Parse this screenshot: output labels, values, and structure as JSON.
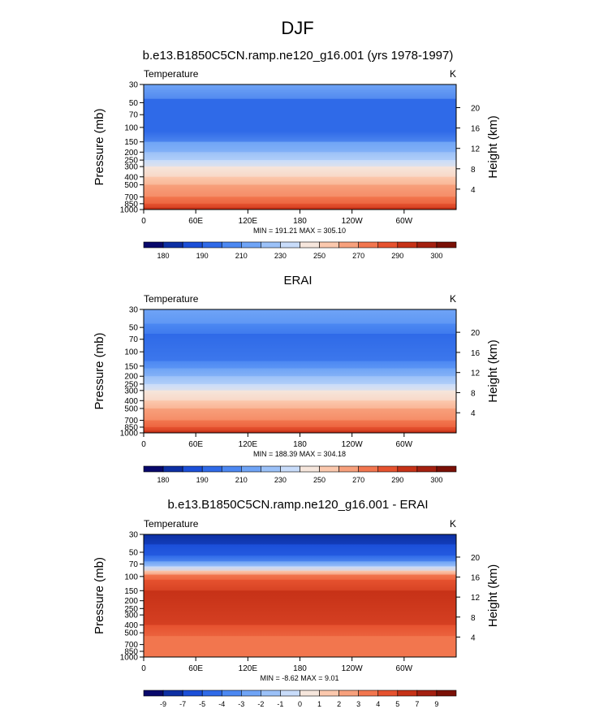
{
  "title": "DJF",
  "chart_data": [
    {
      "type": "heatmap",
      "title": "b.e13.B1850C5CN.ramp.ne120_g16.001 (yrs 1978-1997)",
      "left_string": "Temperature",
      "right_string": "K",
      "ylabel": "Pressure (mb)",
      "ylabel_right": "Height (km)",
      "x_ticks": [
        "0",
        "60E",
        "120E",
        "180",
        "120W",
        "60W"
      ],
      "y_ticks": [
        "30",
        "50",
        "70",
        "100",
        "150",
        "200",
        "250",
        "300",
        "400",
        "500",
        "700",
        "850",
        "1000"
      ],
      "height_ticks": [
        "20",
        "16",
        "12",
        "8",
        "4"
      ],
      "stats": "MIN = 191.21  MAX = 305.10",
      "colorbar_labels": [
        "180",
        "190",
        "210",
        "230",
        "250",
        "270",
        "290",
        "300"
      ],
      "colors": [
        "#08086b",
        "#0d2fa3",
        "#1b4fd8",
        "#2f6ae8",
        "#4c88f2",
        "#6fa4f6",
        "#9bc1f8",
        "#c8dcfa",
        "#f6e6dc",
        "#fbc8ad",
        "#f7a07c",
        "#f2764f",
        "#e6522f",
        "#c63217",
        "#a42010",
        "#7a1006"
      ],
      "bands": [
        {
          "p": 30,
          "level": 5
        },
        {
          "p": 45,
          "level": 3
        },
        {
          "p": 110,
          "level": 3
        },
        {
          "p": 150,
          "level": 5
        },
        {
          "p": 200,
          "level": 6
        },
        {
          "p": 250,
          "level": 7
        },
        {
          "p": 300,
          "level": 8
        },
        {
          "p": 400,
          "level": 9
        },
        {
          "p": 500,
          "level": 10
        },
        {
          "p": 700,
          "level": 11
        },
        {
          "p": 850,
          "level": 12
        },
        {
          "p": 950,
          "level": 13
        },
        {
          "p": 1000,
          "level": 13
        }
      ]
    },
    {
      "type": "heatmap",
      "title": "ERAI",
      "left_string": "Temperature",
      "right_string": "K",
      "ylabel": "Pressure (mb)",
      "ylabel_right": "Height (km)",
      "x_ticks": [
        "0",
        "60E",
        "120E",
        "180",
        "120W",
        "60W"
      ],
      "y_ticks": [
        "30",
        "50",
        "70",
        "100",
        "150",
        "200",
        "250",
        "300",
        "400",
        "500",
        "700",
        "850",
        "1000"
      ],
      "height_ticks": [
        "20",
        "16",
        "12",
        "8",
        "4"
      ],
      "stats": "MIN = 188.39  MAX = 304.18",
      "colorbar_labels": [
        "180",
        "190",
        "210",
        "230",
        "250",
        "270",
        "290",
        "300"
      ],
      "colors": [
        "#08086b",
        "#0d2fa3",
        "#1b4fd8",
        "#2f6ae8",
        "#4c88f2",
        "#6fa4f6",
        "#9bc1f8",
        "#c8dcfa",
        "#f6e6dc",
        "#fbc8ad",
        "#f7a07c",
        "#f2764f",
        "#e6522f",
        "#c63217",
        "#a42010",
        "#7a1006"
      ],
      "bands": [
        {
          "p": 30,
          "level": 5
        },
        {
          "p": 45,
          "level": 4
        },
        {
          "p": 60,
          "level": 3
        },
        {
          "p": 130,
          "level": 4
        },
        {
          "p": 160,
          "level": 5
        },
        {
          "p": 200,
          "level": 6
        },
        {
          "p": 250,
          "level": 7
        },
        {
          "p": 300,
          "level": 8
        },
        {
          "p": 400,
          "level": 9
        },
        {
          "p": 500,
          "level": 10
        },
        {
          "p": 700,
          "level": 11
        },
        {
          "p": 850,
          "level": 12
        },
        {
          "p": 950,
          "level": 13
        },
        {
          "p": 1000,
          "level": 13
        }
      ]
    },
    {
      "type": "heatmap",
      "title": "b.e13.B1850C5CN.ramp.ne120_g16.001 - ERAI",
      "left_string": "Temperature",
      "right_string": "K",
      "ylabel": "Pressure (mb)",
      "ylabel_right": "Height (km)",
      "x_ticks": [
        "0",
        "60E",
        "120E",
        "180",
        "120W",
        "60W"
      ],
      "y_ticks": [
        "30",
        "50",
        "70",
        "100",
        "150",
        "200",
        "250",
        "300",
        "400",
        "500",
        "700",
        "850",
        "1000"
      ],
      "height_ticks": [
        "20",
        "16",
        "12",
        "8",
        "4"
      ],
      "stats": "MIN = -8.62  MAX =  9.01",
      "colorbar_labels": [
        "-9",
        "-7",
        "-5",
        "-4",
        "-3",
        "-2",
        "-1",
        "0",
        "1",
        "2",
        "3",
        "4",
        "5",
        "7",
        "9"
      ],
      "colors": [
        "#08086b",
        "#0d2fa3",
        "#1b4fd8",
        "#2f6ae8",
        "#4c88f2",
        "#6fa4f6",
        "#9bc1f8",
        "#c8dcfa",
        "#f6e6dc",
        "#fbc8ad",
        "#f7a07c",
        "#f2764f",
        "#e6522f",
        "#c63217",
        "#a42010",
        "#7a1006"
      ],
      "bands": [
        {
          "p": 30,
          "level": 1
        },
        {
          "p": 40,
          "level": 2
        },
        {
          "p": 55,
          "level": 3
        },
        {
          "p": 65,
          "level": 5
        },
        {
          "p": 75,
          "level": 7
        },
        {
          "p": 85,
          "level": 9
        },
        {
          "p": 95,
          "level": 11
        },
        {
          "p": 110,
          "level": 12
        },
        {
          "p": 150,
          "level": 13
        },
        {
          "p": 400,
          "level": 12
        },
        {
          "p": 550,
          "level": 11
        },
        {
          "p": 1000,
          "level": 11
        }
      ]
    }
  ]
}
